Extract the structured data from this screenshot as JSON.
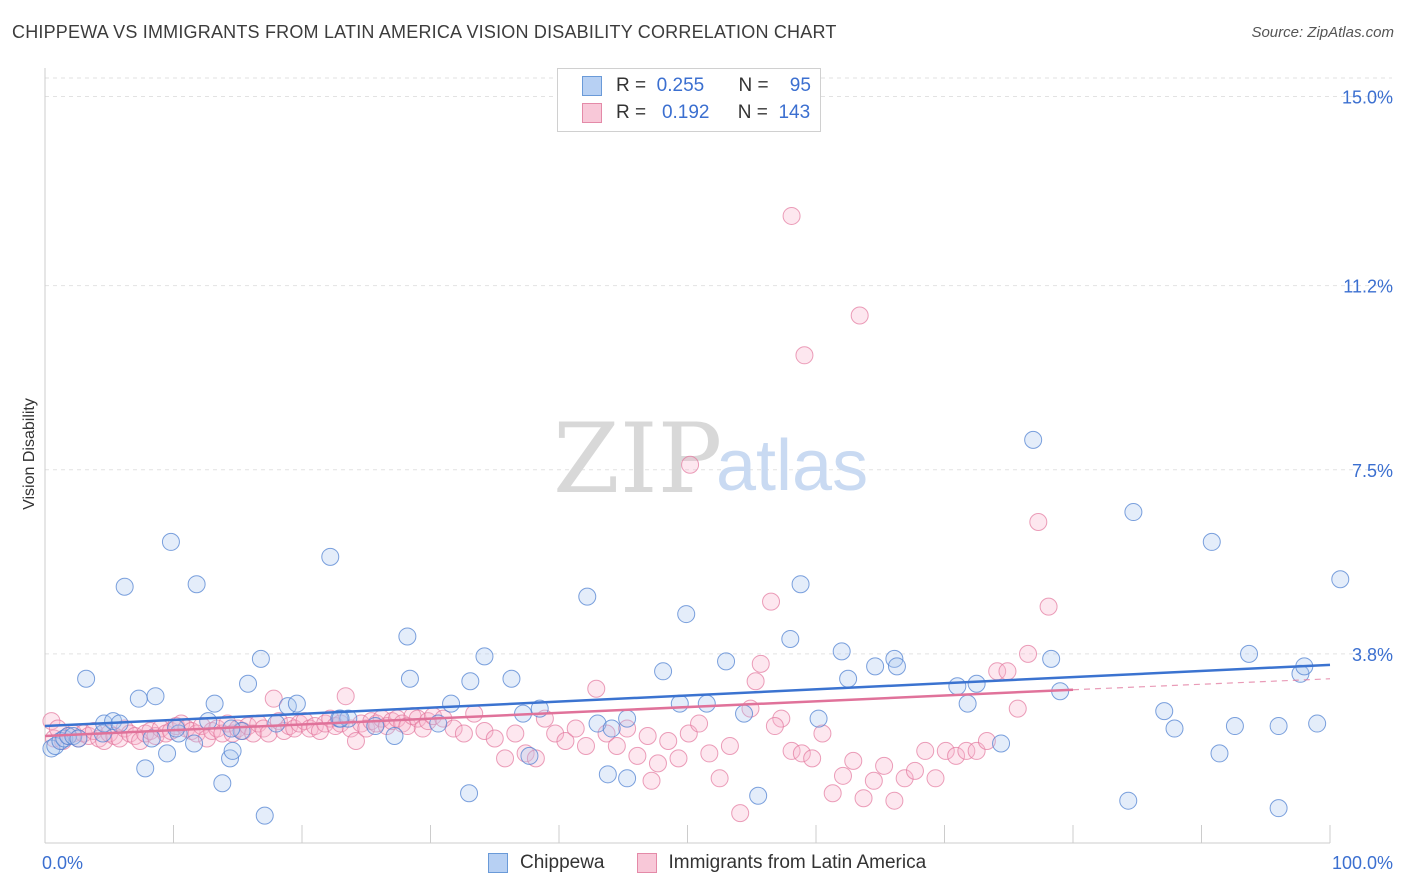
{
  "title": "CHIPPEWA VS IMMIGRANTS FROM LATIN AMERICA VISION DISABILITY CORRELATION CHART",
  "source": "Source: ZipAtlas.com",
  "watermark": {
    "zip": "ZIP",
    "atlas": "atlas"
  },
  "legend": {
    "chippewa": {
      "r_label": "R =",
      "r": "0.255",
      "n_label": "N =",
      "n": "95"
    },
    "immigrants": {
      "r_label": "R =",
      "r": "0.192",
      "n_label": "N =",
      "n": "143"
    }
  },
  "colors": {
    "blue": "#3b73d0",
    "pink": "#e0729a",
    "blue_fill": "#b7d0f3",
    "pink_fill": "#f8c8d8",
    "axis_text": "#3b6fd0"
  },
  "chart_data": {
    "type": "scatter",
    "title": "CHIPPEWA VS IMMIGRANTS FROM LATIN AMERICA VISION DISABILITY CORRELATION CHART",
    "xlabel": "",
    "ylabel": "Vision Disability",
    "xlim": [
      0,
      100
    ],
    "ylim": [
      0,
      15.0
    ],
    "x_tick_labels": [
      "0.0%",
      "100.0%"
    ],
    "y_ticks": [
      3.8,
      7.5,
      11.2,
      15.0
    ],
    "y_tick_labels": [
      "3.8%",
      "7.5%",
      "11.2%",
      "15.0%"
    ],
    "grid": true,
    "legend_position": "top-center",
    "series": [
      {
        "name": "Chippewa",
        "color": "#3b73d0",
        "trend": {
          "x": [
            0,
            100
          ],
          "y": [
            2.35,
            3.58
          ]
        },
        "points": [
          [
            0.5,
            1.9
          ],
          [
            0.8,
            1.95
          ],
          [
            1.2,
            2.05
          ],
          [
            1.5,
            2.1
          ],
          [
            1.8,
            2.15
          ],
          [
            2.2,
            2.15
          ],
          [
            2.6,
            2.1
          ],
          [
            3.2,
            3.3
          ],
          [
            4.5,
            2.2
          ],
          [
            4.6,
            2.4
          ],
          [
            5.3,
            2.45
          ],
          [
            6.2,
            5.15
          ],
          [
            5.8,
            2.4
          ],
          [
            7.3,
            2.9
          ],
          [
            7.8,
            1.5
          ],
          [
            8.6,
            2.95
          ],
          [
            8.3,
            2.1
          ],
          [
            9.5,
            1.8
          ],
          [
            9.8,
            6.05
          ],
          [
            10.4,
            2.2
          ],
          [
            10.2,
            2.3
          ],
          [
            11.6,
            2.0
          ],
          [
            11.8,
            5.2
          ],
          [
            12.7,
            2.45
          ],
          [
            13.2,
            2.8
          ],
          [
            13.8,
            1.2
          ],
          [
            14.4,
            1.7
          ],
          [
            14.6,
            1.85
          ],
          [
            15.3,
            2.25
          ],
          [
            15.8,
            3.2
          ],
          [
            16.8,
            3.7
          ],
          [
            17.1,
            0.55
          ],
          [
            18.0,
            2.4
          ],
          [
            18.9,
            2.75
          ],
          [
            19.6,
            2.8
          ],
          [
            22.2,
            5.75
          ],
          [
            22.9,
            2.5
          ],
          [
            23.6,
            2.5
          ],
          [
            23.0,
            2.5
          ],
          [
            28.2,
            4.15
          ],
          [
            28.4,
            3.3
          ],
          [
            27.2,
            2.15
          ],
          [
            30.6,
            2.4
          ],
          [
            31.6,
            2.8
          ],
          [
            33.0,
            1.0
          ],
          [
            33.1,
            3.25
          ],
          [
            34.2,
            3.75
          ],
          [
            36.3,
            3.3
          ],
          [
            37.7,
            1.75
          ],
          [
            37.2,
            2.6
          ],
          [
            42.2,
            4.95
          ],
          [
            43.0,
            2.4
          ],
          [
            44.1,
            2.3
          ],
          [
            43.8,
            1.38
          ],
          [
            45.3,
            2.5
          ],
          [
            45.3,
            1.3
          ],
          [
            48.1,
            3.45
          ],
          [
            49.4,
            2.8
          ],
          [
            49.9,
            4.6
          ],
          [
            51.5,
            2.8
          ],
          [
            53.0,
            3.65
          ],
          [
            54.4,
            2.6
          ],
          [
            55.5,
            0.95
          ],
          [
            58.0,
            4.1
          ],
          [
            58.8,
            5.2
          ],
          [
            62.0,
            3.85
          ],
          [
            62.5,
            3.3
          ],
          [
            64.6,
            3.55
          ],
          [
            66.1,
            3.7
          ],
          [
            66.3,
            3.55
          ],
          [
            71.0,
            3.15
          ],
          [
            71.8,
            2.8
          ],
          [
            74.4,
            2.0
          ],
          [
            76.9,
            8.1
          ],
          [
            78.3,
            3.7
          ],
          [
            79.0,
            3.05
          ],
          [
            84.7,
            6.65
          ],
          [
            84.3,
            0.85
          ],
          [
            87.1,
            2.65
          ],
          [
            87.9,
            2.3
          ],
          [
            90.8,
            6.05
          ],
          [
            91.4,
            1.8
          ],
          [
            92.6,
            2.35
          ],
          [
            93.7,
            3.8
          ],
          [
            96.0,
            2.35
          ],
          [
            96.0,
            0.7
          ],
          [
            97.7,
            3.4
          ],
          [
            98.0,
            3.55
          ],
          [
            99.0,
            2.4
          ],
          [
            100.8,
            5.3
          ],
          [
            14.5,
            2.3
          ],
          [
            25.7,
            2.35
          ],
          [
            38.5,
            2.7
          ],
          [
            60.2,
            2.5
          ],
          [
            72.5,
            3.2
          ]
        ]
      },
      {
        "name": "Immigrants from Latin America",
        "color": "#e0729a",
        "trend": {
          "x": [
            0,
            80
          ],
          "y": [
            2.15,
            3.08
          ]
        },
        "trend_dashed": {
          "x": [
            80,
            100
          ],
          "y": [
            3.08,
            3.3
          ]
        },
        "points": [
          [
            0.5,
            2.45
          ],
          [
            0.7,
            2.1
          ],
          [
            1.0,
            2.3
          ],
          [
            1.4,
            2.05
          ],
          [
            1.8,
            2.15
          ],
          [
            2.2,
            2.2
          ],
          [
            2.6,
            2.1
          ],
          [
            3.0,
            2.2
          ],
          [
            3.4,
            2.15
          ],
          [
            3.8,
            2.25
          ],
          [
            4.2,
            2.1
          ],
          [
            4.6,
            2.05
          ],
          [
            5.0,
            2.2
          ],
          [
            5.4,
            2.15
          ],
          [
            5.8,
            2.1
          ],
          [
            6.2,
            2.3
          ],
          [
            6.6,
            2.2
          ],
          [
            7.0,
            2.15
          ],
          [
            7.4,
            2.05
          ],
          [
            7.8,
            2.2
          ],
          [
            8.2,
            2.25
          ],
          [
            8.6,
            2.15
          ],
          [
            9.0,
            2.3
          ],
          [
            9.4,
            2.2
          ],
          [
            9.8,
            2.25
          ],
          [
            10.2,
            2.35
          ],
          [
            10.6,
            2.4
          ],
          [
            11.0,
            2.3
          ],
          [
            11.4,
            2.25
          ],
          [
            11.8,
            2.2
          ],
          [
            12.2,
            2.35
          ],
          [
            12.6,
            2.1
          ],
          [
            13.0,
            2.25
          ],
          [
            13.4,
            2.3
          ],
          [
            13.8,
            2.2
          ],
          [
            14.2,
            2.4
          ],
          [
            14.6,
            2.2
          ],
          [
            15.0,
            2.3
          ],
          [
            15.4,
            2.25
          ],
          [
            15.8,
            2.35
          ],
          [
            16.2,
            2.2
          ],
          [
            16.6,
            2.4
          ],
          [
            17.0,
            2.3
          ],
          [
            17.4,
            2.2
          ],
          [
            17.8,
            2.9
          ],
          [
            18.2,
            2.45
          ],
          [
            18.6,
            2.25
          ],
          [
            19.0,
            2.35
          ],
          [
            19.4,
            2.3
          ],
          [
            19.8,
            2.4
          ],
          [
            20.2,
            2.45
          ],
          [
            20.6,
            2.3
          ],
          [
            21.0,
            2.35
          ],
          [
            21.4,
            2.25
          ],
          [
            21.8,
            2.4
          ],
          [
            22.2,
            2.5
          ],
          [
            22.6,
            2.35
          ],
          [
            23.0,
            2.4
          ],
          [
            23.4,
            2.95
          ],
          [
            23.8,
            2.3
          ],
          [
            24.2,
            2.05
          ],
          [
            24.6,
            2.4
          ],
          [
            25.0,
            2.3
          ],
          [
            25.4,
            2.45
          ],
          [
            25.8,
            2.4
          ],
          [
            26.2,
            2.5
          ],
          [
            26.6,
            2.35
          ],
          [
            27.0,
            2.45
          ],
          [
            27.4,
            2.5
          ],
          [
            27.8,
            2.4
          ],
          [
            28.2,
            2.35
          ],
          [
            28.6,
            2.55
          ],
          [
            29.0,
            2.5
          ],
          [
            29.4,
            2.3
          ],
          [
            29.8,
            2.45
          ],
          [
            30.2,
            2.55
          ],
          [
            31.0,
            2.5
          ],
          [
            31.8,
            2.3
          ],
          [
            32.6,
            2.2
          ],
          [
            33.4,
            2.6
          ],
          [
            34.2,
            2.25
          ],
          [
            35.0,
            2.1
          ],
          [
            35.8,
            1.7
          ],
          [
            36.6,
            2.2
          ],
          [
            37.4,
            1.8
          ],
          [
            38.2,
            1.7
          ],
          [
            38.9,
            2.5
          ],
          [
            39.7,
            2.2
          ],
          [
            40.5,
            2.05
          ],
          [
            41.3,
            2.3
          ],
          [
            42.1,
            1.95
          ],
          [
            42.9,
            3.1
          ],
          [
            43.7,
            2.2
          ],
          [
            44.5,
            1.95
          ],
          [
            45.3,
            2.3
          ],
          [
            46.1,
            1.75
          ],
          [
            46.9,
            2.15
          ],
          [
            47.2,
            1.25
          ],
          [
            47.7,
            1.6
          ],
          [
            48.5,
            2.05
          ],
          [
            49.3,
            1.7
          ],
          [
            50.1,
            2.2
          ],
          [
            50.9,
            2.4
          ],
          [
            51.7,
            1.8
          ],
          [
            52.5,
            1.3
          ],
          [
            53.3,
            1.95
          ],
          [
            54.1,
            0.6
          ],
          [
            54.9,
            2.7
          ],
          [
            55.7,
            3.6
          ],
          [
            56.5,
            4.85
          ],
          [
            57.3,
            2.5
          ],
          [
            58.1,
            1.85
          ],
          [
            58.9,
            1.8
          ],
          [
            59.7,
            1.7
          ],
          [
            60.5,
            2.2
          ],
          [
            61.3,
            1.0
          ],
          [
            62.1,
            1.35
          ],
          [
            62.9,
            1.65
          ],
          [
            63.7,
            0.9
          ],
          [
            64.5,
            1.25
          ],
          [
            65.3,
            1.55
          ],
          [
            66.1,
            0.85
          ],
          [
            66.9,
            1.3
          ],
          [
            67.7,
            1.45
          ],
          [
            68.5,
            1.85
          ],
          [
            69.3,
            1.3
          ],
          [
            70.1,
            1.85
          ],
          [
            70.9,
            1.75
          ],
          [
            71.7,
            1.85
          ],
          [
            72.5,
            1.85
          ],
          [
            73.3,
            2.05
          ],
          [
            74.1,
            3.45
          ],
          [
            74.9,
            3.45
          ],
          [
            75.7,
            2.7
          ],
          [
            76.5,
            3.8
          ],
          [
            77.3,
            6.45
          ],
          [
            78.1,
            4.75
          ],
          [
            58.1,
            12.6
          ],
          [
            59.1,
            9.8
          ],
          [
            63.4,
            10.6
          ],
          [
            50.2,
            7.6
          ],
          [
            55.3,
            3.25
          ],
          [
            56.8,
            2.35
          ]
        ]
      }
    ]
  }
}
